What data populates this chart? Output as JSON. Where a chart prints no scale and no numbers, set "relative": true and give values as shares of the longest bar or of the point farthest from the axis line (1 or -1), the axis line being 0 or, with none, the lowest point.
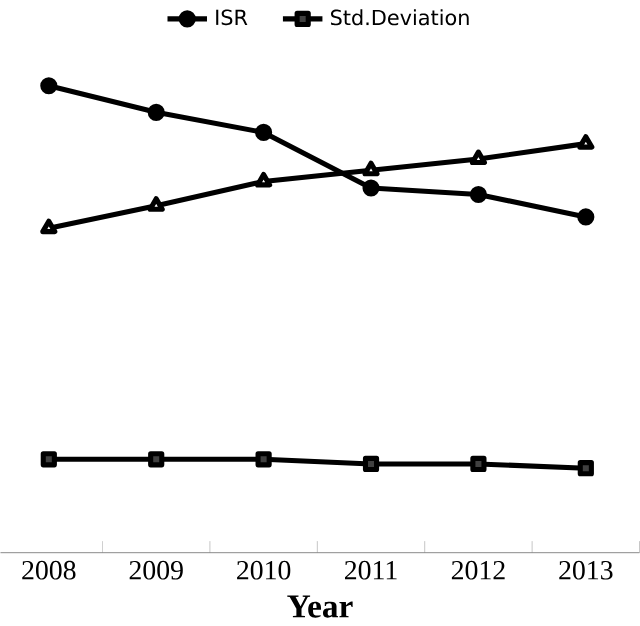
{
  "chart_data": {
    "type": "line",
    "xlabel": "Year",
    "relative": true,
    "categories": [
      "2008",
      "2009",
      "2010",
      "2011",
      "2012",
      "2013"
    ],
    "series": [
      {
        "name": "ISR",
        "color": "#000000",
        "marker": "circle",
        "values": [
          1,
          0.943,
          0.9,
          0.781,
          0.767,
          0.719
        ]
      },
      {
        "name": "Std.Deviation",
        "color": "#000000",
        "marker": "square",
        "values": [
          0.2,
          0.2,
          0.2,
          0.19,
          0.19,
          0.181
        ]
      },
      {
        "color": "#000000",
        "marker": "triangle",
        "values": [
          0.695,
          0.743,
          0.795,
          0.819,
          0.843,
          0.876
        ]
      }
    ],
    "legend": "top"
  }
}
